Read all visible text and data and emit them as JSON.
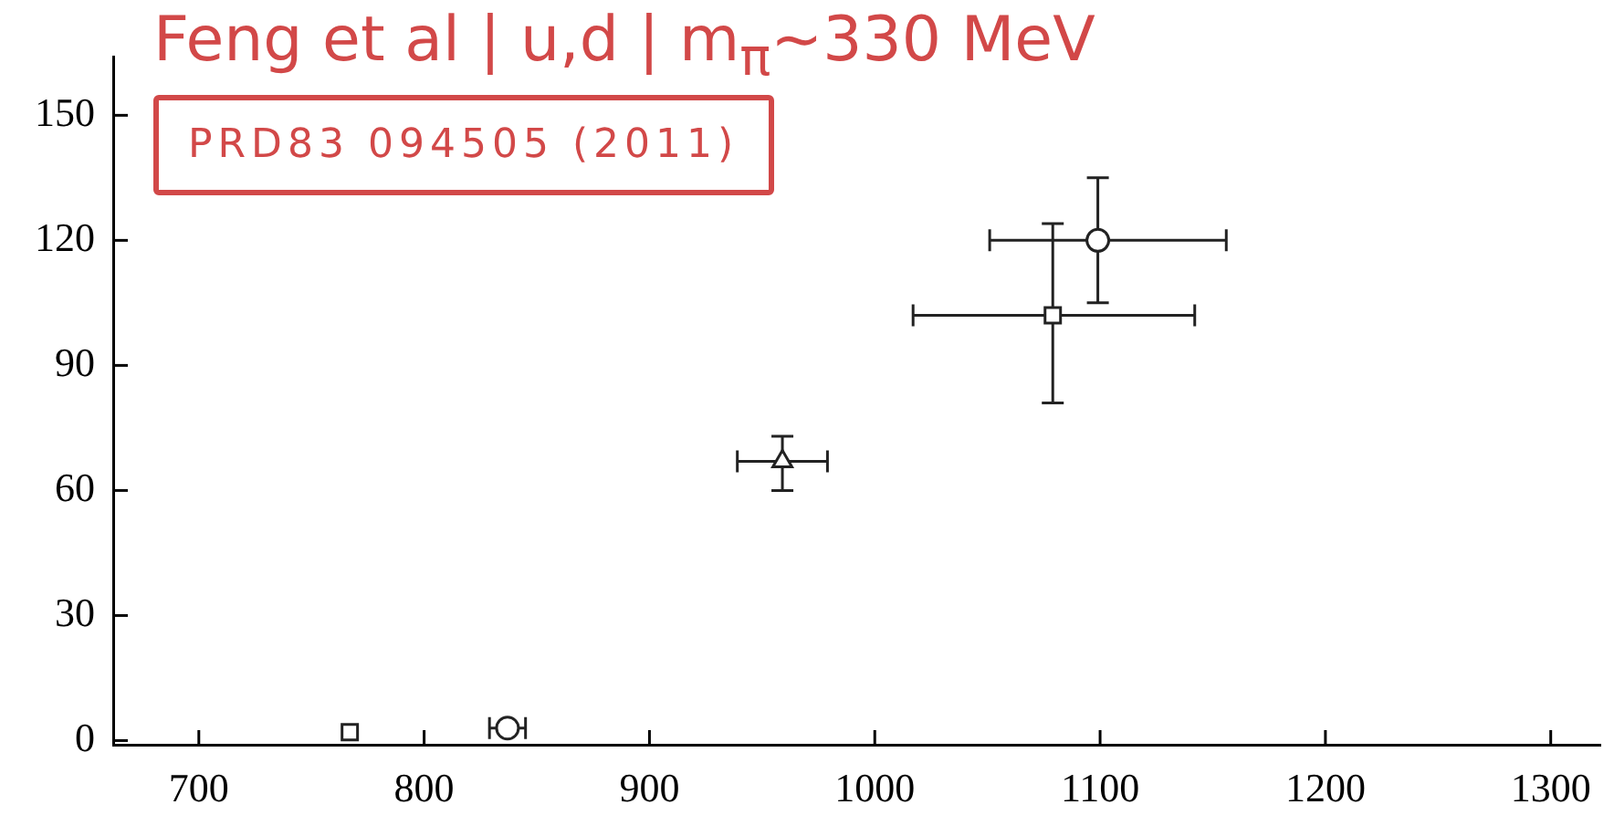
{
  "chart_data": {
    "type": "scatter",
    "title": "Feng et al | u,d | m$_{π}$~330 MeV",
    "annotations": [
      "PRD83 094505 (2011)"
    ],
    "xlim": [
      662,
      1322
    ],
    "xticks": [
      700,
      800,
      900,
      1000,
      1100,
      1200,
      1300
    ],
    "ylim": [
      -1,
      164
    ],
    "yticks": [
      0,
      30,
      60,
      90,
      120,
      150
    ],
    "grid": false,
    "legend": false,
    "series": [
      {
        "color": "#222222",
        "marker": "square",
        "x": [
          767,
          1079
        ],
        "values": [
          2,
          102
        ],
        "errors": [
          null,
          [
            81,
            124
          ]
        ],
        "xerrors": [
          null,
          [
            1017,
            1142
          ]
        ]
      },
      {
        "color": "#222222",
        "marker": "circle",
        "x": [
          837,
          1099
        ],
        "values": [
          3,
          120
        ],
        "errors": [
          null,
          [
            105,
            135
          ]
        ],
        "xerrors": [
          8,
          [
            1051,
            1156
          ]
        ]
      },
      {
        "color": "#222222",
        "marker": "triangle",
        "x": [
          959
        ],
        "values": [
          67
        ],
        "errors": [
          [
            60,
            73
          ]
        ],
        "xerrors": [
          20
        ]
      }
    ]
  }
}
